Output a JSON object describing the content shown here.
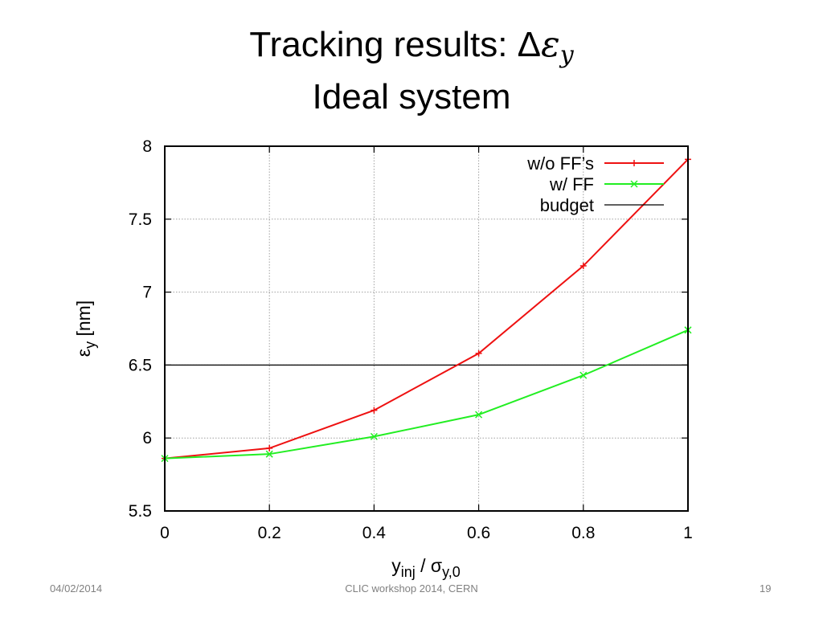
{
  "title": {
    "line1_prefix": "Tracking results: Δ",
    "symbol": "ε",
    "symbol_sub": "y",
    "line2": "Ideal system"
  },
  "footer": {
    "date": "04/02/2014",
    "center": "CLIC workshop 2014, CERN",
    "page": "19"
  },
  "chart_data": {
    "type": "line",
    "xlabel": {
      "main": "y",
      "main_sub": "inj",
      "sep": " / ",
      "sym": "σ",
      "sym_sub": "y,0"
    },
    "ylabel": {
      "sym": "ε",
      "sym_sub": "y",
      "unit": " [nm]"
    },
    "xlim": [
      0,
      1
    ],
    "ylim": [
      5.5,
      8
    ],
    "xticks": [
      "0",
      "0.2",
      "0.4",
      "0.6",
      "0.8",
      "1"
    ],
    "yticks": [
      "5.5",
      "6",
      "6.5",
      "7",
      "7.5",
      "8"
    ],
    "grid": true,
    "legend_position": "top-right",
    "x": [
      0,
      0.2,
      0.4,
      0.6,
      0.8,
      1.0
    ],
    "series": [
      {
        "name": "w/o FF’s",
        "color": "#ee1111",
        "marker": "plus",
        "values": [
          5.86,
          5.93,
          6.19,
          6.58,
          7.18,
          7.91
        ]
      },
      {
        "name": "w/ FF",
        "color": "#22ee22",
        "marker": "cross",
        "values": [
          5.86,
          5.89,
          6.01,
          6.16,
          6.43,
          6.74
        ]
      }
    ],
    "reference_lines": [
      {
        "name": "budget",
        "color": "#000000",
        "y": 6.5
      }
    ]
  }
}
